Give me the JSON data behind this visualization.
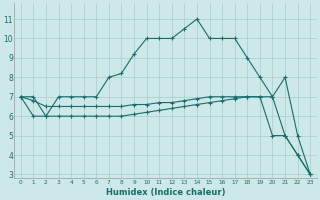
{
  "xlabel": "Humidex (Indice chaleur)",
  "background_color": "#cce8e8",
  "grid_color": "#aacccc",
  "line_color": "#1a6b6b",
  "xlim": [
    -0.5,
    23.5
  ],
  "ylim": [
    2.8,
    11.8
  ],
  "yticks": [
    3,
    4,
    5,
    6,
    7,
    8,
    9,
    10,
    11
  ],
  "xticks": [
    0,
    1,
    2,
    3,
    4,
    5,
    6,
    7,
    8,
    9,
    10,
    11,
    12,
    13,
    14,
    15,
    16,
    17,
    18,
    19,
    20,
    21,
    22,
    23
  ],
  "line1_x": [
    0,
    1,
    2,
    3,
    4,
    5,
    6,
    7,
    8,
    9,
    10,
    11,
    12,
    13,
    14,
    15,
    16,
    17,
    18,
    19,
    20,
    21,
    22,
    23
  ],
  "line1_y": [
    7,
    6,
    6,
    7,
    7,
    7,
    7,
    8,
    8.2,
    9.2,
    10,
    10,
    10,
    10.5,
    11,
    10,
    10,
    10,
    9,
    8,
    7,
    8,
    5,
    3
  ],
  "line2_x": [
    0,
    1,
    2,
    3,
    4,
    5,
    6,
    7,
    8,
    9,
    10,
    11,
    12,
    13,
    14,
    15,
    16,
    17,
    18,
    19,
    20,
    21,
    22,
    23
  ],
  "line2_y": [
    7,
    6.8,
    6.5,
    6.5,
    6.5,
    6.5,
    6.5,
    6.5,
    6.5,
    6.6,
    6.6,
    6.7,
    6.7,
    6.8,
    6.9,
    7.0,
    7.0,
    7.0,
    7.0,
    7.0,
    7.0,
    5.0,
    4.0,
    3.0
  ],
  "line3_x": [
    0,
    1,
    2,
    3,
    4,
    5,
    6,
    7,
    8,
    9,
    10,
    11,
    12,
    13,
    14,
    15,
    16,
    17,
    18,
    19,
    20,
    21,
    22,
    23
  ],
  "line3_y": [
    7,
    7,
    6.0,
    6.0,
    6.0,
    6.0,
    6.0,
    6.0,
    6.0,
    6.1,
    6.2,
    6.3,
    6.4,
    6.5,
    6.6,
    6.7,
    6.8,
    6.9,
    7.0,
    7.0,
    5.0,
    5.0,
    4.0,
    3.0
  ]
}
